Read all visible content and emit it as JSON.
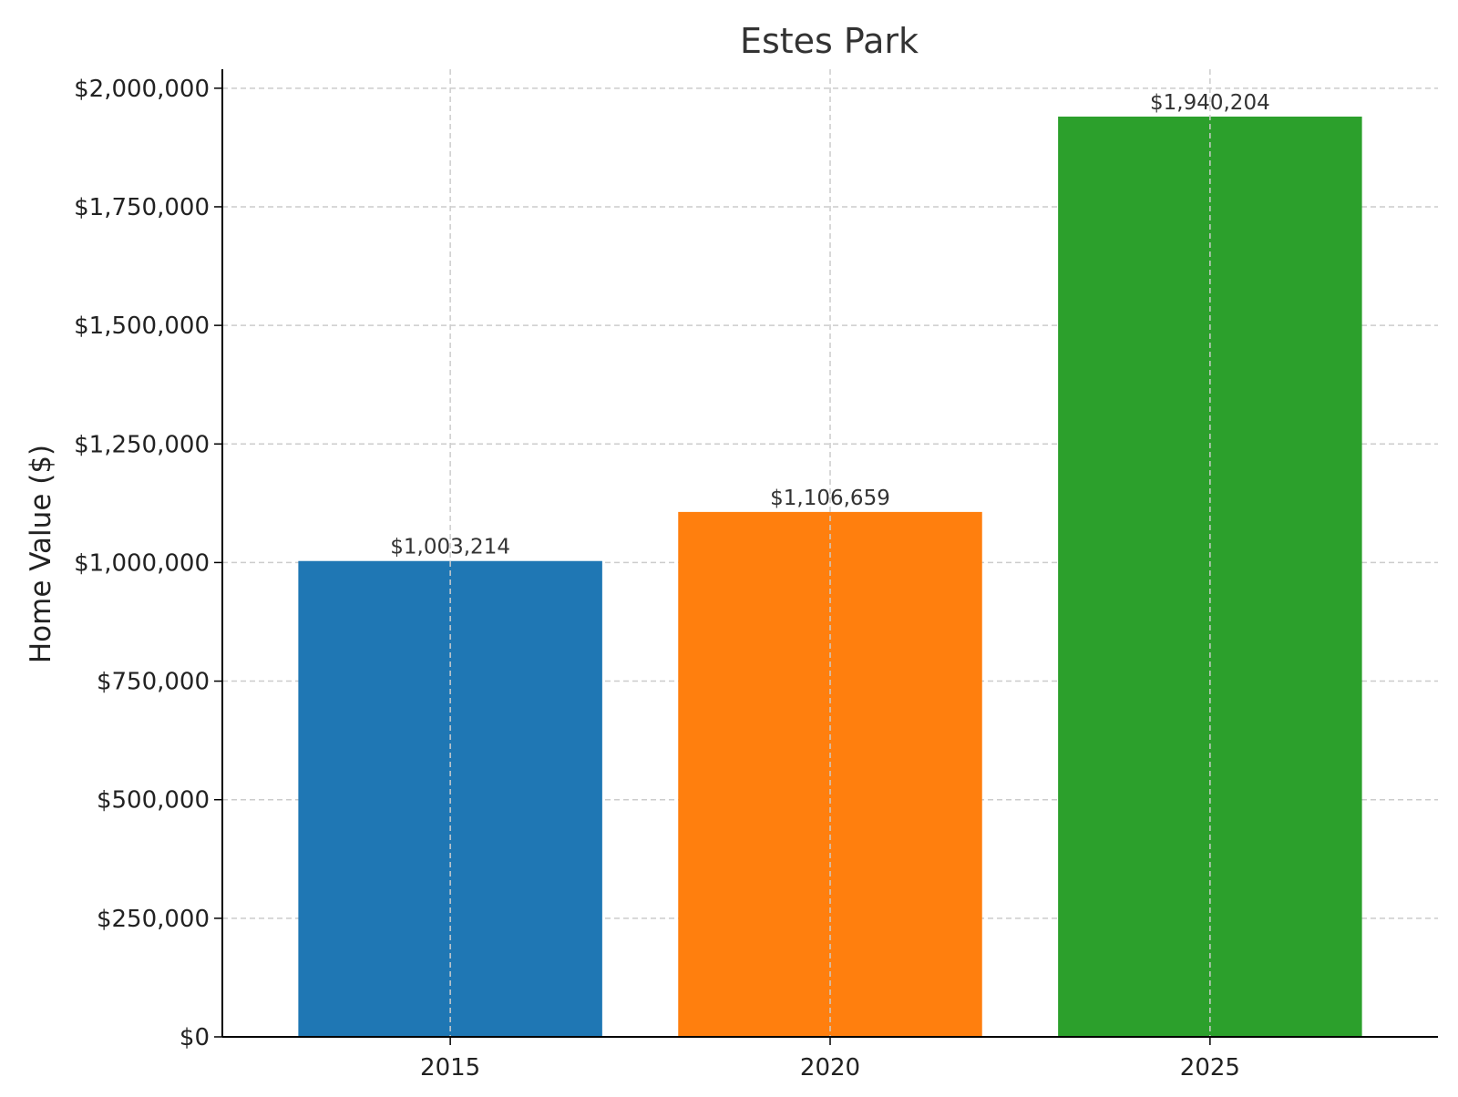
{
  "chart_data": {
    "type": "bar",
    "title": "Estes Park",
    "xlabel": "",
    "ylabel": "Home Value ($)",
    "categories": [
      "2015",
      "2020",
      "2025"
    ],
    "values": [
      1003214,
      1106659,
      1940204
    ],
    "value_labels": [
      "$1,003,214",
      "$1,106,659",
      "$1,940,204"
    ],
    "colors": [
      "#1f77b4",
      "#ff7f0e",
      "#2ca02c"
    ],
    "ylim": [
      0,
      2040000
    ],
    "yticks": [
      0,
      250000,
      500000,
      750000,
      1000000,
      1250000,
      1500000,
      1750000,
      2000000
    ],
    "ytick_labels": [
      "$0",
      "$250,000",
      "$500,000",
      "$750,000",
      "$1,000,000",
      "$1,250,000",
      "$1,500,000",
      "$1,750,000",
      "$2,000,000"
    ],
    "grid": true,
    "grid_style": "dashed"
  }
}
